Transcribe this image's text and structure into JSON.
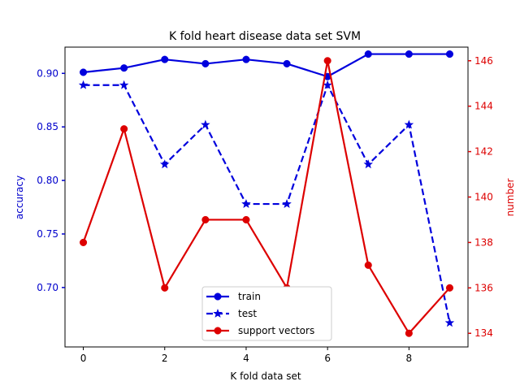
{
  "chart_data": {
    "type": "line",
    "title": "K fold heart disease data set SVM",
    "xlabel": "K fold data set",
    "ylabel_left": "accuracy",
    "ylabel_right": "number",
    "x": [
      0,
      1,
      2,
      3,
      4,
      5,
      6,
      7,
      8,
      9
    ],
    "xlim": [
      -0.45,
      9.45
    ],
    "xticks": [
      0,
      2,
      4,
      6,
      8
    ],
    "ylim_left": [
      0.6445,
      0.9245
    ],
    "yticks_left": [
      0.7,
      0.75,
      0.8,
      0.85,
      0.9
    ],
    "ylim_right": [
      133.4,
      146.6
    ],
    "yticks_right": [
      134,
      136,
      138,
      140,
      142,
      144,
      146
    ],
    "left_axis_color": "#0000cc",
    "right_axis_color": "#dd0000",
    "series": [
      {
        "name": "train",
        "axis": "left",
        "color": "#0000dd",
        "style": "solid",
        "marker": "circle",
        "values": [
          0.901,
          0.905,
          0.913,
          0.909,
          0.913,
          0.909,
          0.897,
          0.918,
          0.918,
          0.918
        ]
      },
      {
        "name": "test",
        "axis": "left",
        "color": "#0000dd",
        "style": "dashed",
        "marker": "star",
        "values": [
          0.889,
          0.889,
          0.815,
          0.852,
          0.778,
          0.778,
          0.889,
          0.815,
          0.852,
          0.667
        ]
      },
      {
        "name": "support vectors",
        "axis": "right",
        "color": "#dd0000",
        "style": "solid",
        "marker": "circle",
        "values": [
          138,
          143,
          136,
          139,
          139,
          136,
          146,
          137,
          134,
          136
        ]
      }
    ],
    "legend_position": "lower-center"
  }
}
